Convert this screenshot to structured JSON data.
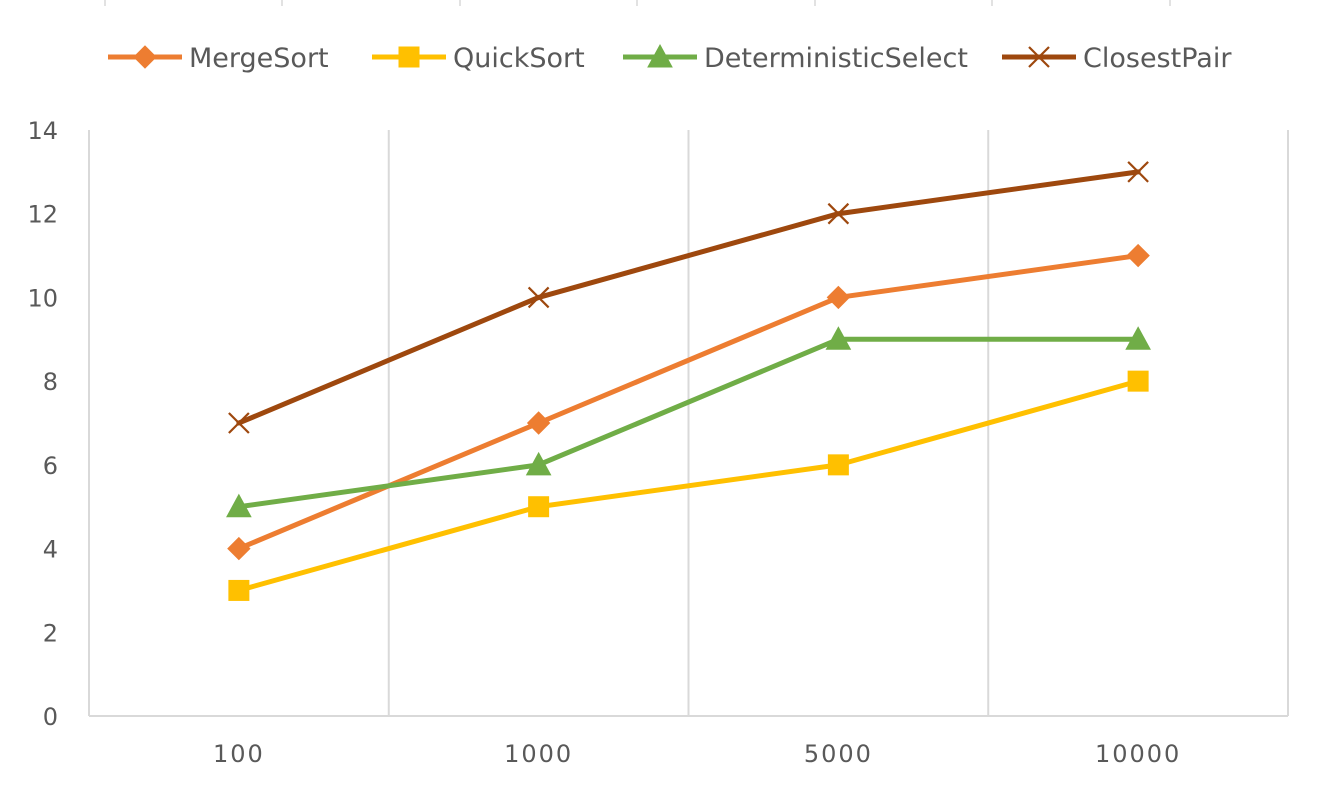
{
  "chart_data": {
    "type": "line",
    "title": "",
    "xlabel": "",
    "ylabel": "",
    "categories": [
      "100",
      "1000",
      "5000",
      "10000"
    ],
    "ylim": [
      0,
      14
    ],
    "yticks": [
      0,
      2,
      4,
      6,
      8,
      10,
      12,
      14
    ],
    "grid": "vertical",
    "legend_position": "top",
    "series": [
      {
        "name": "MergeSort",
        "values": [
          4,
          7,
          10,
          11
        ],
        "color": "#ED7D31",
        "marker": "diamond"
      },
      {
        "name": "QuickSort",
        "values": [
          3,
          5,
          6,
          8
        ],
        "color": "#FFC000",
        "marker": "square"
      },
      {
        "name": "DeterministicSelect",
        "values": [
          5,
          6,
          9,
          9
        ],
        "color": "#70AD47",
        "marker": "triangle"
      },
      {
        "name": "ClosestPair",
        "values": [
          7,
          10,
          12,
          13
        ],
        "color": "#9E480E",
        "marker": "x"
      }
    ]
  }
}
